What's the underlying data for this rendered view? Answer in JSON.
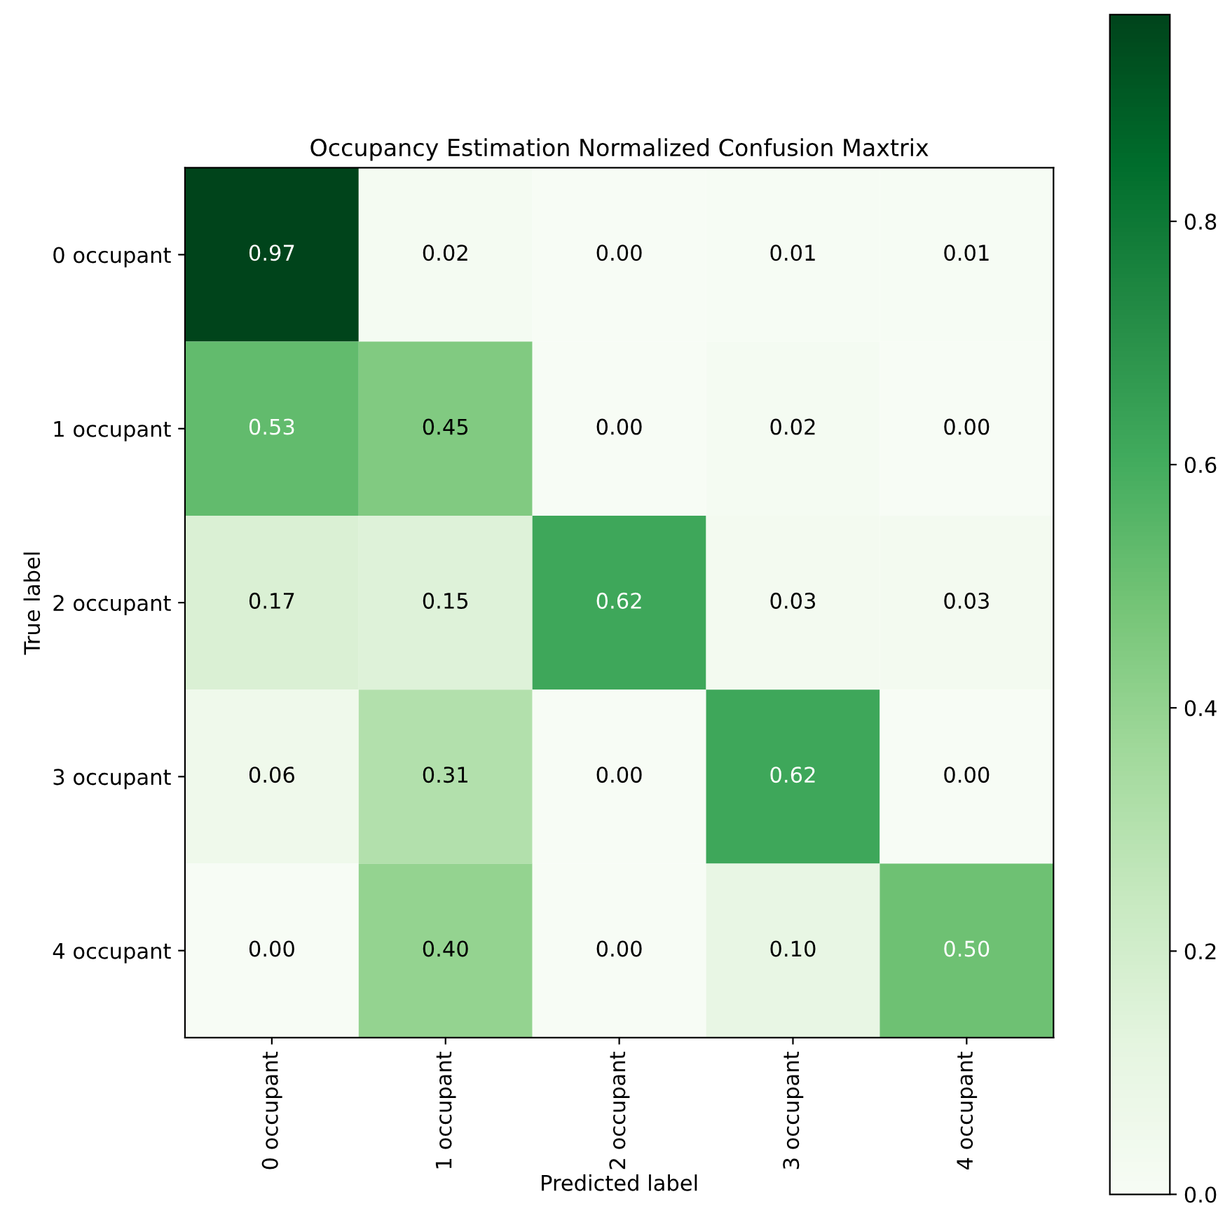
{
  "chart_data": {
    "type": "heatmap",
    "title": "Occupancy Estimation Normalized Confusion Maxtrix",
    "xlabel": "Predicted label",
    "ylabel": "True label",
    "categories": [
      "0 occupant",
      "1 occupant",
      "2 occupant",
      "3 occupant",
      "4 occupant"
    ],
    "y_categories": [
      "0 occupant",
      "1 occupant",
      "2 occupant",
      "3 occupant",
      "4 occupant"
    ],
    "cells": [
      [
        0.97,
        0.02,
        0.0,
        0.01,
        0.01
      ],
      [
        0.53,
        0.45,
        0.0,
        0.02,
        0.0
      ],
      [
        0.17,
        0.15,
        0.62,
        0.03,
        0.03
      ],
      [
        0.06,
        0.31,
        0.0,
        0.62,
        0.0
      ],
      [
        0.0,
        0.4,
        0.0,
        0.1,
        0.5
      ]
    ],
    "cell_labels": [
      [
        "0.97",
        "0.02",
        "0.00",
        "0.01",
        "0.01"
      ],
      [
        "0.53",
        "0.45",
        "0.00",
        "0.02",
        "0.00"
      ],
      [
        "0.17",
        "0.15",
        "0.62",
        "0.03",
        "0.03"
      ],
      [
        "0.06",
        "0.31",
        "0.00",
        "0.62",
        "0.00"
      ],
      [
        "0.00",
        "0.40",
        "0.00",
        "0.10",
        "0.50"
      ]
    ],
    "clim": [
      0,
      0.97
    ],
    "cticks": [
      {
        "value": 0,
        "label": "0.0"
      },
      {
        "value": 0.2,
        "label": "0.2"
      },
      {
        "value": 0.4,
        "label": "0.4"
      },
      {
        "value": 0.6,
        "label": "0.6"
      },
      {
        "value": 0.8,
        "label": "0.8"
      }
    ]
  }
}
